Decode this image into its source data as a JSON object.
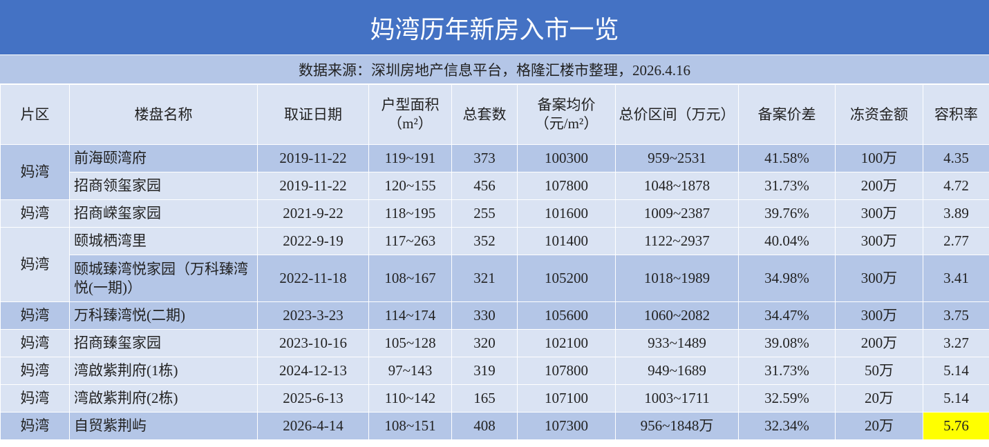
{
  "header": {
    "title": "妈湾历年新房入市一览",
    "subtitle": "数据来源：深圳房地产信息平台，格隆汇楼市整理，2026.4.16"
  },
  "table": {
    "columns": [
      "片区",
      "楼盘名称",
      "取证日期",
      "户型面积（m²）",
      "总套数",
      "备案均价（元/m²）",
      "总价区间（万元）",
      "备案价差",
      "冻资金额",
      "容积率"
    ],
    "groups": [
      {
        "district": "妈湾",
        "rows": [
          [
            "前海颐湾府",
            "2019-11-22",
            "119~191",
            "373",
            "100300",
            "959~2531",
            "41.58%",
            "100万",
            "4.35"
          ],
          [
            "招商领玺家园",
            "2019-11-22",
            "120~155",
            "456",
            "107800",
            "1048~1878",
            "31.73%",
            "200万",
            "4.72"
          ]
        ]
      },
      {
        "district": "妈湾",
        "rows": [
          [
            "招商嵘玺家园",
            "2021-9-22",
            "118~195",
            "255",
            "101600",
            "1009~2387",
            "39.76%",
            "300万",
            "3.89"
          ]
        ]
      },
      {
        "district": "妈湾",
        "rows": [
          [
            "颐城栖湾里",
            "2022-9-19",
            "117~263",
            "352",
            "101400",
            "1122~2937",
            "40.04%",
            "300万",
            "2.77"
          ],
          [
            "颐城臻湾悦家园（万科臻湾悦(一期)）",
            "2022-11-18",
            "108~167",
            "321",
            "105200",
            "1018~1989",
            "34.98%",
            "300万",
            "3.41"
          ]
        ]
      },
      {
        "district": "妈湾",
        "rows": [
          [
            "万科臻湾悦(二期)",
            "2023-3-23",
            "114~174",
            "330",
            "105600",
            "1060~2082",
            "34.47%",
            "300万",
            "3.75"
          ]
        ]
      },
      {
        "district": "妈湾",
        "rows": [
          [
            "招商臻玺家园",
            "2023-10-16",
            "105~128",
            "320",
            "102100",
            "933~1489",
            "39.08%",
            "200万",
            "3.27"
          ]
        ]
      },
      {
        "district": "妈湾",
        "rows": [
          [
            "湾啟紫荆府(1栋)",
            "2024-12-13",
            "97~143",
            "319",
            "107800",
            "949~1689",
            "31.73%",
            "50万",
            "5.14"
          ]
        ]
      },
      {
        "district": "妈湾",
        "rows": [
          [
            "湾啟紫荆府(2栋)",
            "2025-6-13",
            "110~142",
            "165",
            "107100",
            "1003~1711",
            "32.59%",
            "20万",
            "5.14"
          ]
        ]
      },
      {
        "district": "妈湾",
        "rows": [
          [
            "自贸紫荆屿",
            "2026-4-14",
            "108~151",
            "408",
            "107300",
            "956~1848万",
            "32.34%",
            "20万",
            "5.76"
          ]
        ]
      }
    ]
  }
}
